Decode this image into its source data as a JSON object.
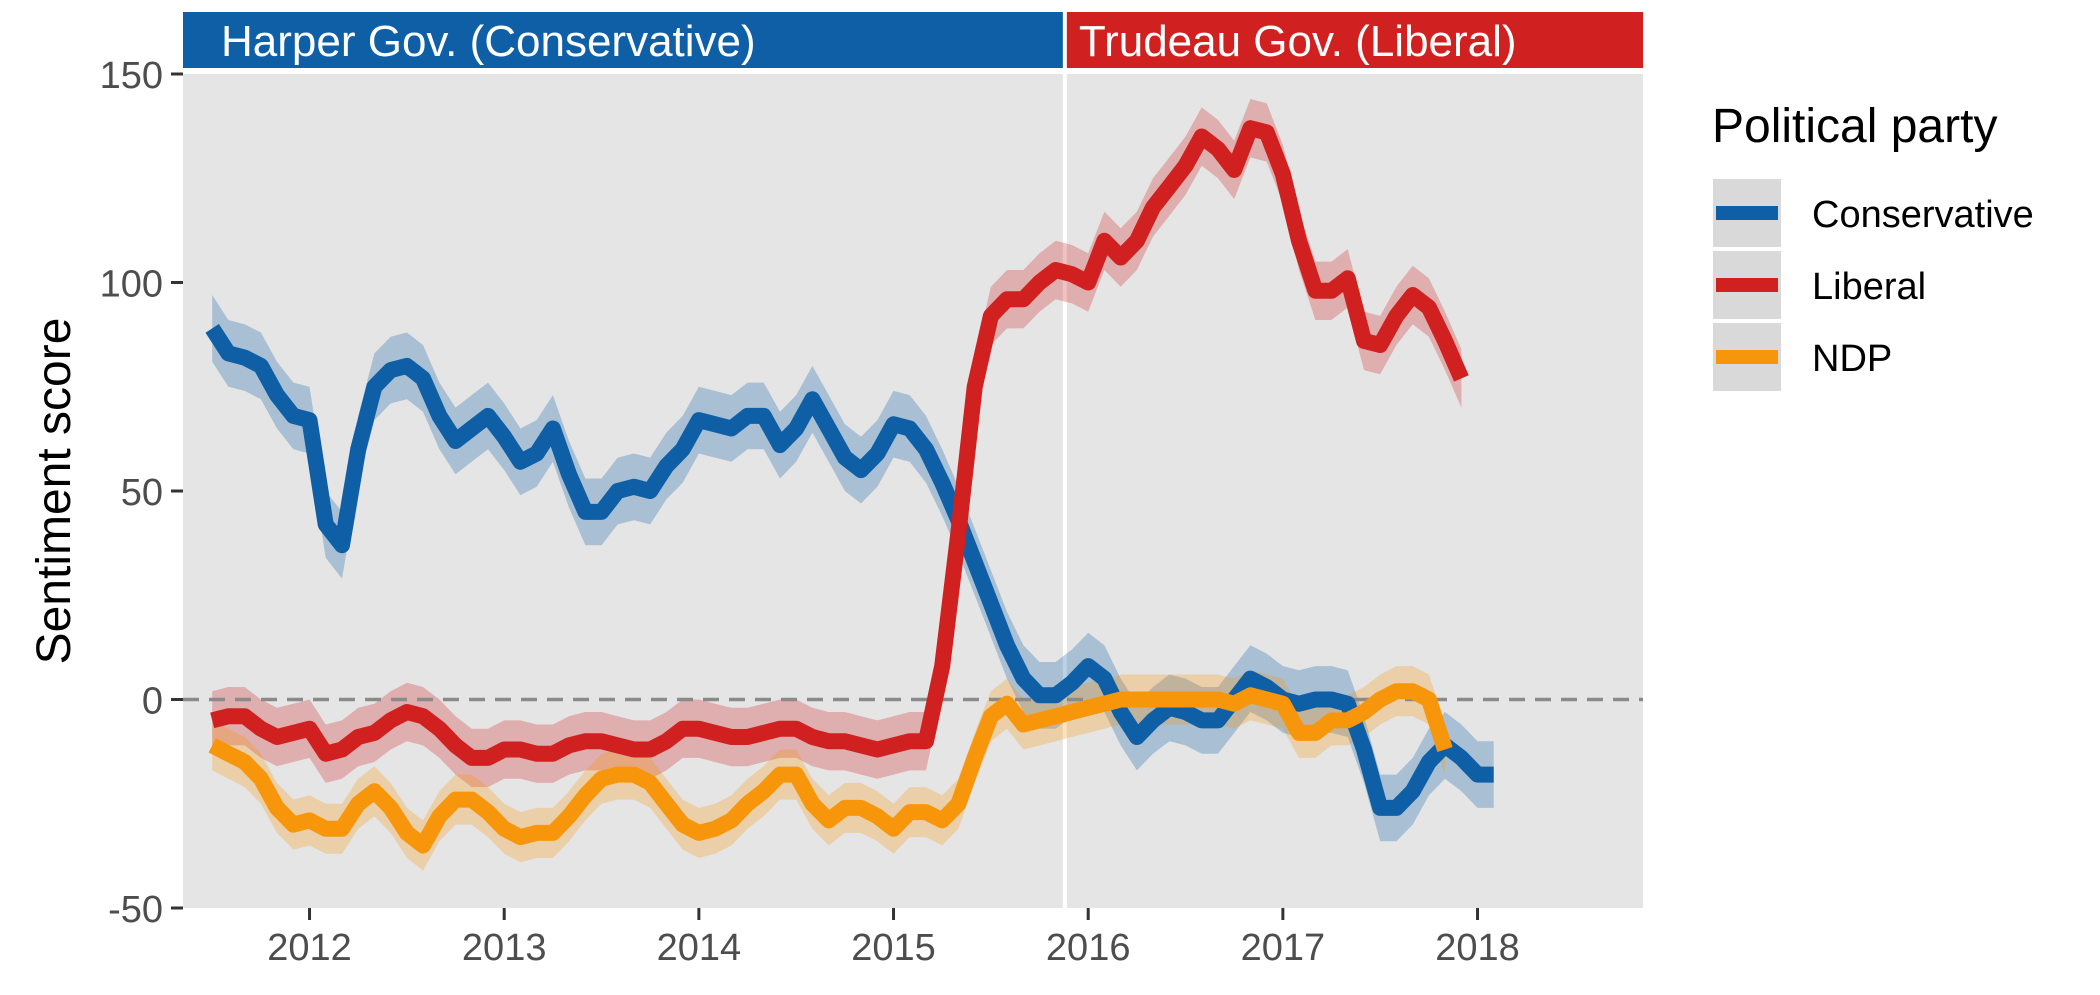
{
  "chart_data": {
    "type": "line",
    "ylabel": "Sentiment score",
    "xlabel": "",
    "title": "",
    "ylim": [
      -50,
      150
    ],
    "xlim": [
      2011.35,
      2018.85
    ],
    "y_ticks": [
      -50,
      0,
      50,
      100,
      150
    ],
    "x_ticks": [
      2012,
      2013,
      2014,
      2015,
      2016,
      2017,
      2018
    ],
    "reference_line": {
      "y": 0,
      "style": "dashed"
    },
    "grid": false,
    "panels": [
      {
        "label": "Harper Gov. (Conservative)",
        "x_range": [
          2011.35,
          2015.88
        ],
        "color": "#0f5fa6"
      },
      {
        "label": "Trudeau Gov. (Liberal)",
        "x_range": [
          2015.88,
          2018.85
        ],
        "color": "#d0201f"
      }
    ],
    "legend": {
      "title": "Political party",
      "position": "right"
    },
    "series": [
      {
        "name": "Conservative",
        "color": "#0f5fa6",
        "points": [
          [
            2011.5,
            89
          ],
          [
            2011.583,
            83
          ],
          [
            2011.667,
            82
          ],
          [
            2011.75,
            80
          ],
          [
            2011.833,
            73
          ],
          [
            2011.917,
            68
          ],
          [
            2012.0,
            67
          ],
          [
            2012.083,
            42
          ],
          [
            2012.167,
            37
          ],
          [
            2012.25,
            60
          ],
          [
            2012.333,
            75
          ],
          [
            2012.417,
            79
          ],
          [
            2012.5,
            80
          ],
          [
            2012.583,
            77
          ],
          [
            2012.667,
            68
          ],
          [
            2012.75,
            62
          ],
          [
            2012.833,
            65
          ],
          [
            2012.917,
            68
          ],
          [
            2013.0,
            63
          ],
          [
            2013.083,
            57
          ],
          [
            2013.167,
            59
          ],
          [
            2013.25,
            65
          ],
          [
            2013.333,
            54
          ],
          [
            2013.417,
            45
          ],
          [
            2013.5,
            45
          ],
          [
            2013.583,
            50
          ],
          [
            2013.667,
            51
          ],
          [
            2013.75,
            50
          ],
          [
            2013.833,
            56
          ],
          [
            2013.917,
            60
          ],
          [
            2014.0,
            67
          ],
          [
            2014.083,
            66
          ],
          [
            2014.167,
            65
          ],
          [
            2014.25,
            68
          ],
          [
            2014.333,
            68
          ],
          [
            2014.417,
            61
          ],
          [
            2014.5,
            65
          ],
          [
            2014.583,
            72
          ],
          [
            2014.667,
            65
          ],
          [
            2014.75,
            58
          ],
          [
            2014.833,
            55
          ],
          [
            2014.917,
            59
          ],
          [
            2015.0,
            66
          ],
          [
            2015.083,
            65
          ],
          [
            2015.167,
            60
          ],
          [
            2015.25,
            52
          ],
          [
            2015.333,
            43
          ],
          [
            2015.417,
            33
          ],
          [
            2015.5,
            23
          ],
          [
            2015.583,
            13
          ],
          [
            2015.667,
            5
          ],
          [
            2015.75,
            1
          ],
          [
            2015.833,
            1
          ],
          [
            2015.917,
            4
          ],
          [
            2016.0,
            8
          ],
          [
            2016.083,
            5
          ],
          [
            2016.167,
            -3
          ],
          [
            2016.25,
            -9
          ],
          [
            2016.333,
            -5
          ],
          [
            2016.417,
            -2
          ],
          [
            2016.5,
            -3
          ],
          [
            2016.583,
            -5
          ],
          [
            2016.667,
            -5
          ],
          [
            2016.75,
            0
          ],
          [
            2016.833,
            5
          ],
          [
            2016.917,
            3
          ],
          [
            2017.0,
            0
          ],
          [
            2017.083,
            -1
          ],
          [
            2017.167,
            0
          ],
          [
            2017.25,
            0
          ],
          [
            2017.333,
            -1
          ],
          [
            2017.417,
            -12
          ],
          [
            2017.5,
            -26
          ],
          [
            2017.583,
            -26
          ],
          [
            2017.667,
            -22
          ],
          [
            2017.75,
            -15
          ],
          [
            2017.833,
            -11
          ],
          [
            2017.917,
            -14
          ],
          [
            2018.0,
            -18
          ],
          [
            2018.083,
            -18
          ]
        ],
        "band": 8
      },
      {
        "name": "Liberal",
        "color": "#d0201f",
        "points": [
          [
            2011.5,
            -5
          ],
          [
            2011.583,
            -4
          ],
          [
            2011.667,
            -4
          ],
          [
            2011.75,
            -7
          ],
          [
            2011.833,
            -9
          ],
          [
            2011.917,
            -8
          ],
          [
            2012.0,
            -7
          ],
          [
            2012.083,
            -13
          ],
          [
            2012.167,
            -12
          ],
          [
            2012.25,
            -9
          ],
          [
            2012.333,
            -8
          ],
          [
            2012.417,
            -5
          ],
          [
            2012.5,
            -3
          ],
          [
            2012.583,
            -4
          ],
          [
            2012.667,
            -7
          ],
          [
            2012.75,
            -11
          ],
          [
            2012.833,
            -14
          ],
          [
            2012.917,
            -14
          ],
          [
            2013.0,
            -12
          ],
          [
            2013.083,
            -12
          ],
          [
            2013.167,
            -13
          ],
          [
            2013.25,
            -13
          ],
          [
            2013.333,
            -11
          ],
          [
            2013.417,
            -10
          ],
          [
            2013.5,
            -10
          ],
          [
            2013.583,
            -11
          ],
          [
            2013.667,
            -12
          ],
          [
            2013.75,
            -12
          ],
          [
            2013.833,
            -10
          ],
          [
            2013.917,
            -7
          ],
          [
            2014.0,
            -7
          ],
          [
            2014.083,
            -8
          ],
          [
            2014.167,
            -9
          ],
          [
            2014.25,
            -9
          ],
          [
            2014.333,
            -8
          ],
          [
            2014.417,
            -7
          ],
          [
            2014.5,
            -7
          ],
          [
            2014.583,
            -9
          ],
          [
            2014.667,
            -10
          ],
          [
            2014.75,
            -10
          ],
          [
            2014.833,
            -11
          ],
          [
            2014.917,
            -12
          ],
          [
            2015.0,
            -11
          ],
          [
            2015.083,
            -10
          ],
          [
            2015.167,
            -10
          ],
          [
            2015.25,
            8
          ],
          [
            2015.333,
            40
          ],
          [
            2015.417,
            75
          ],
          [
            2015.5,
            92
          ],
          [
            2015.583,
            96
          ],
          [
            2015.667,
            96
          ],
          [
            2015.75,
            100
          ],
          [
            2015.833,
            103
          ],
          [
            2015.917,
            102
          ],
          [
            2016.0,
            100
          ],
          [
            2016.083,
            110
          ],
          [
            2016.167,
            106
          ],
          [
            2016.25,
            110
          ],
          [
            2016.333,
            118
          ],
          [
            2016.417,
            123
          ],
          [
            2016.5,
            128
          ],
          [
            2016.583,
            135
          ],
          [
            2016.667,
            132
          ],
          [
            2016.75,
            127
          ],
          [
            2016.833,
            137
          ],
          [
            2016.917,
            136
          ],
          [
            2017.0,
            126
          ],
          [
            2017.083,
            110
          ],
          [
            2017.167,
            98
          ],
          [
            2017.25,
            98
          ],
          [
            2017.333,
            101
          ],
          [
            2017.417,
            86
          ],
          [
            2017.5,
            85
          ],
          [
            2017.583,
            92
          ],
          [
            2017.667,
            97
          ],
          [
            2017.75,
            94
          ],
          [
            2017.833,
            86
          ],
          [
            2017.917,
            77
          ]
        ],
        "band": 7
      },
      {
        "name": "NDP",
        "color": "#f8960b",
        "points": [
          [
            2011.5,
            -11
          ],
          [
            2011.583,
            -13
          ],
          [
            2011.667,
            -15
          ],
          [
            2011.75,
            -19
          ],
          [
            2011.833,
            -26
          ],
          [
            2011.917,
            -30
          ],
          [
            2012.0,
            -29
          ],
          [
            2012.083,
            -31
          ],
          [
            2012.167,
            -31
          ],
          [
            2012.25,
            -25
          ],
          [
            2012.333,
            -22
          ],
          [
            2012.417,
            -26
          ],
          [
            2012.5,
            -32
          ],
          [
            2012.583,
            -35
          ],
          [
            2012.667,
            -28
          ],
          [
            2012.75,
            -24
          ],
          [
            2012.833,
            -24
          ],
          [
            2012.917,
            -27
          ],
          [
            2013.0,
            -31
          ],
          [
            2013.083,
            -33
          ],
          [
            2013.167,
            -32
          ],
          [
            2013.25,
            -32
          ],
          [
            2013.333,
            -28
          ],
          [
            2013.417,
            -23
          ],
          [
            2013.5,
            -19
          ],
          [
            2013.583,
            -18
          ],
          [
            2013.667,
            -18
          ],
          [
            2013.75,
            -20
          ],
          [
            2013.833,
            -25
          ],
          [
            2013.917,
            -30
          ],
          [
            2014.0,
            -32
          ],
          [
            2014.083,
            -31
          ],
          [
            2014.167,
            -29
          ],
          [
            2014.25,
            -25
          ],
          [
            2014.333,
            -22
          ],
          [
            2014.417,
            -18
          ],
          [
            2014.5,
            -18
          ],
          [
            2014.583,
            -25
          ],
          [
            2014.667,
            -29
          ],
          [
            2014.75,
            -26
          ],
          [
            2014.833,
            -26
          ],
          [
            2014.917,
            -28
          ],
          [
            2015.0,
            -31
          ],
          [
            2015.083,
            -27
          ],
          [
            2015.167,
            -27
          ],
          [
            2015.25,
            -29
          ],
          [
            2015.333,
            -25
          ],
          [
            2015.417,
            -14
          ],
          [
            2015.5,
            -4
          ],
          [
            2015.583,
            -1
          ],
          [
            2015.667,
            -6
          ],
          [
            2015.75,
            -5
          ],
          [
            2015.833,
            -4
          ],
          [
            2015.917,
            -3
          ],
          [
            2016.0,
            -2
          ],
          [
            2016.083,
            -1
          ],
          [
            2016.167,
            0
          ],
          [
            2016.25,
            0
          ],
          [
            2016.333,
            0
          ],
          [
            2016.417,
            0
          ],
          [
            2016.5,
            0
          ],
          [
            2016.583,
            0
          ],
          [
            2016.667,
            0
          ],
          [
            2016.75,
            -1
          ],
          [
            2016.833,
            1
          ],
          [
            2016.917,
            0
          ],
          [
            2017.0,
            -1
          ],
          [
            2017.083,
            -8
          ],
          [
            2017.167,
            -8
          ],
          [
            2017.25,
            -5
          ],
          [
            2017.333,
            -5
          ],
          [
            2017.417,
            -3
          ],
          [
            2017.5,
            0
          ],
          [
            2017.583,
            2
          ],
          [
            2017.667,
            2
          ],
          [
            2017.75,
            0
          ],
          [
            2017.833,
            -12
          ]
        ],
        "band": 6
      }
    ]
  }
}
